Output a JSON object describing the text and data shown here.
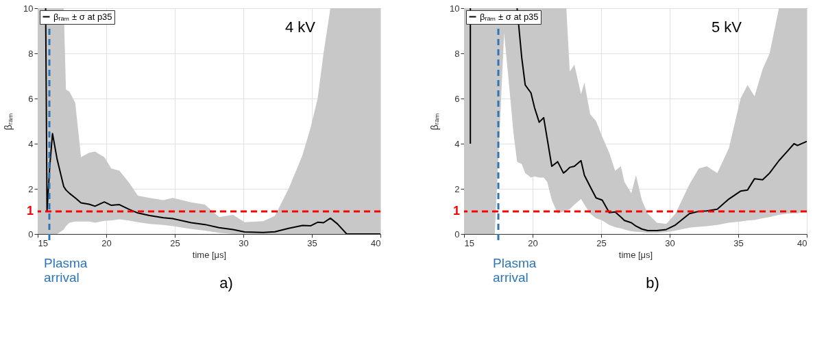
{
  "chart_data": [
    {
      "type": "line",
      "xlabel": "time [μs]",
      "ylabel": "βᵣₐₘ",
      "xlim": [
        15,
        40
      ],
      "ylim": [
        0,
        10
      ],
      "xticks": [
        15,
        20,
        25,
        30,
        35,
        40
      ],
      "yticks": [
        0,
        2,
        4,
        6,
        8,
        10
      ],
      "grid": true,
      "legend": "top left",
      "line_style": "solid",
      "marker": "none",
      "annotations": [
        "4 kV",
        "a)"
      ],
      "ref_lines": [
        {
          "axis": "y",
          "value": 1,
          "label": "1",
          "color": "#ff0000",
          "line_style": "dashed"
        },
        {
          "axis": "x",
          "value": 15.85,
          "label": "Plasma arrival",
          "color": "#2e75b6",
          "line_style": "dashed"
        }
      ],
      "x": [
        15,
        15.58,
        15.68,
        15.88,
        16.08,
        16.42,
        16.9,
        17.06,
        17.32,
        17.74,
        18.16,
        18.75,
        19.18,
        19.86,
        20.37,
        20.96,
        21.63,
        22.31,
        23.16,
        24.17,
        24.85,
        26.2,
        27.2,
        28.23,
        29.25,
        30.09,
        31.45,
        32.3,
        33.3,
        34.32,
        34.9,
        35.42,
        35.85,
        36.35,
        36.86,
        37.54,
        40
      ],
      "series": [
        {
          "name": "βᵣₐₘ ± σ at p35",
          "color": "#000000",
          "values": [
            null,
            10,
            1.0,
            3.0,
            4.45,
            3.3,
            2.1,
            1.95,
            1.8,
            1.6,
            1.38,
            1.32,
            1.23,
            1.42,
            1.27,
            1.3,
            1.1,
            0.93,
            0.82,
            0.72,
            0.68,
            0.5,
            0.42,
            0.28,
            0.2,
            0.09,
            0.07,
            0.1,
            0.25,
            0.38,
            0.36,
            0.52,
            0.5,
            0.7,
            0.45,
            0,
            0
          ],
          "lower": [
            0,
            0,
            0,
            0,
            0,
            0,
            0.2,
            0.35,
            0.5,
            0.55,
            0.55,
            0.55,
            0.5,
            0.58,
            0.6,
            0.65,
            0.6,
            0.52,
            0.45,
            0.4,
            0.35,
            0.22,
            0.15,
            0.05,
            0,
            0,
            0,
            0,
            0,
            0,
            0,
            0,
            0,
            0,
            0,
            0,
            0
          ],
          "upper": [
            10,
            10,
            10,
            10,
            10,
            10,
            10,
            6.4,
            6.3,
            5.8,
            3.4,
            3.6,
            3.65,
            3.4,
            2.9,
            2.8,
            2.3,
            1.7,
            1.6,
            1.5,
            1.6,
            1.4,
            1.3,
            0.75,
            0.85,
            0.52,
            0.57,
            0.8,
            2.0,
            3.5,
            4.7,
            6.0,
            8.0,
            10,
            10,
            10,
            10
          ]
        }
      ]
    },
    {
      "type": "line",
      "xlabel": "time [μs]",
      "ylabel": "βᵣₐₘ",
      "xlim": [
        15,
        40
      ],
      "ylim": [
        0,
        10
      ],
      "xticks": [
        15,
        20,
        25,
        30,
        35,
        40
      ],
      "yticks": [
        0,
        2,
        4,
        6,
        8,
        10
      ],
      "grid": true,
      "legend": "top left",
      "line_style": "solid",
      "marker": "none",
      "annotations": [
        "5 kV",
        "b)"
      ],
      "ref_lines": [
        {
          "axis": "y",
          "value": 1,
          "label": "1",
          "color": "#ff0000",
          "line_style": "dashed"
        },
        {
          "axis": "x",
          "value": 17.5,
          "label": "Plasma arrival",
          "color": "#2e75b6",
          "line_style": "dashed"
        }
      ],
      "x": [
        15,
        15.46,
        15.46,
        15.47,
        17.24,
        17.63,
        17.92,
        18.3,
        18.6,
        18.87,
        19.21,
        19.46,
        19.88,
        20.14,
        20.48,
        20.81,
        21.07,
        21.4,
        21.83,
        22.25,
        22.46,
        22.71,
        23.05,
        23.53,
        23.78,
        24.2,
        24.63,
        25.08,
        25.59,
        26.02,
        26.44,
        26.7,
        27.2,
        27.54,
        27.97,
        28.4,
        29.07,
        29.75,
        30.42,
        31.44,
        32.12,
        32.71,
        33.47,
        34.32,
        35.17,
        35.68,
        36.19,
        36.78,
        37.29,
        37.97,
        38.56,
        39.07,
        39.32,
        40
      ],
      "series": [
        {
          "name": "βᵣₐₘ ± σ at p35",
          "color": "#000000",
          "values": [
            null,
            4,
            10,
            null,
            null,
            null,
            null,
            null,
            null,
            10,
            7.8,
            6.6,
            6.25,
            5.6,
            4.95,
            5.15,
            4.2,
            3.0,
            3.2,
            2.7,
            2.8,
            2.95,
            3.0,
            3.25,
            2.6,
            2.1,
            1.6,
            1.5,
            0.95,
            0.98,
            0.75,
            0.6,
            0.5,
            0.35,
            0.22,
            0.15,
            0.15,
            0.2,
            0.4,
            0.9,
            1.0,
            1.02,
            1.1,
            1.55,
            1.9,
            1.95,
            2.45,
            2.4,
            2.7,
            3.25,
            3.65,
            4.0,
            3.92,
            4.1
          ],
          "lower": [
            0,
            0,
            0,
            0,
            0,
            5,
            8.9,
            6.5,
            4.5,
            3.2,
            3.1,
            2.7,
            2.5,
            2.55,
            2.5,
            2.5,
            2.3,
            1.5,
            0.9,
            1.0,
            1.05,
            1.1,
            1.3,
            1.55,
            1.3,
            0.9,
            0.7,
            0.6,
            0.4,
            0.3,
            0.25,
            0.2,
            0.12,
            0.1,
            0.08,
            0.05,
            0.05,
            0.08,
            0.15,
            0.28,
            0.32,
            0.35,
            0.4,
            0.5,
            0.55,
            0.6,
            0.62,
            0.7,
            0.75,
            0.85,
            0.9,
            0.92,
            0.92,
            1.0
          ],
          "upper": [
            10,
            10,
            10,
            10,
            10,
            10,
            10,
            10,
            10,
            10,
            10,
            10,
            10,
            10,
            10,
            10,
            10,
            10,
            10,
            10,
            10,
            7.2,
            7.5,
            6.2,
            6.7,
            5.3,
            5.0,
            4.3,
            3.6,
            2.8,
            3.0,
            2.3,
            1.8,
            2.6,
            1.5,
            0.9,
            0.5,
            0.45,
            0.9,
            2.2,
            2.9,
            3.0,
            2.7,
            3.8,
            6.0,
            6.6,
            6.1,
            7.3,
            8.0,
            10,
            10,
            10,
            10,
            10
          ]
        }
      ]
    }
  ]
}
